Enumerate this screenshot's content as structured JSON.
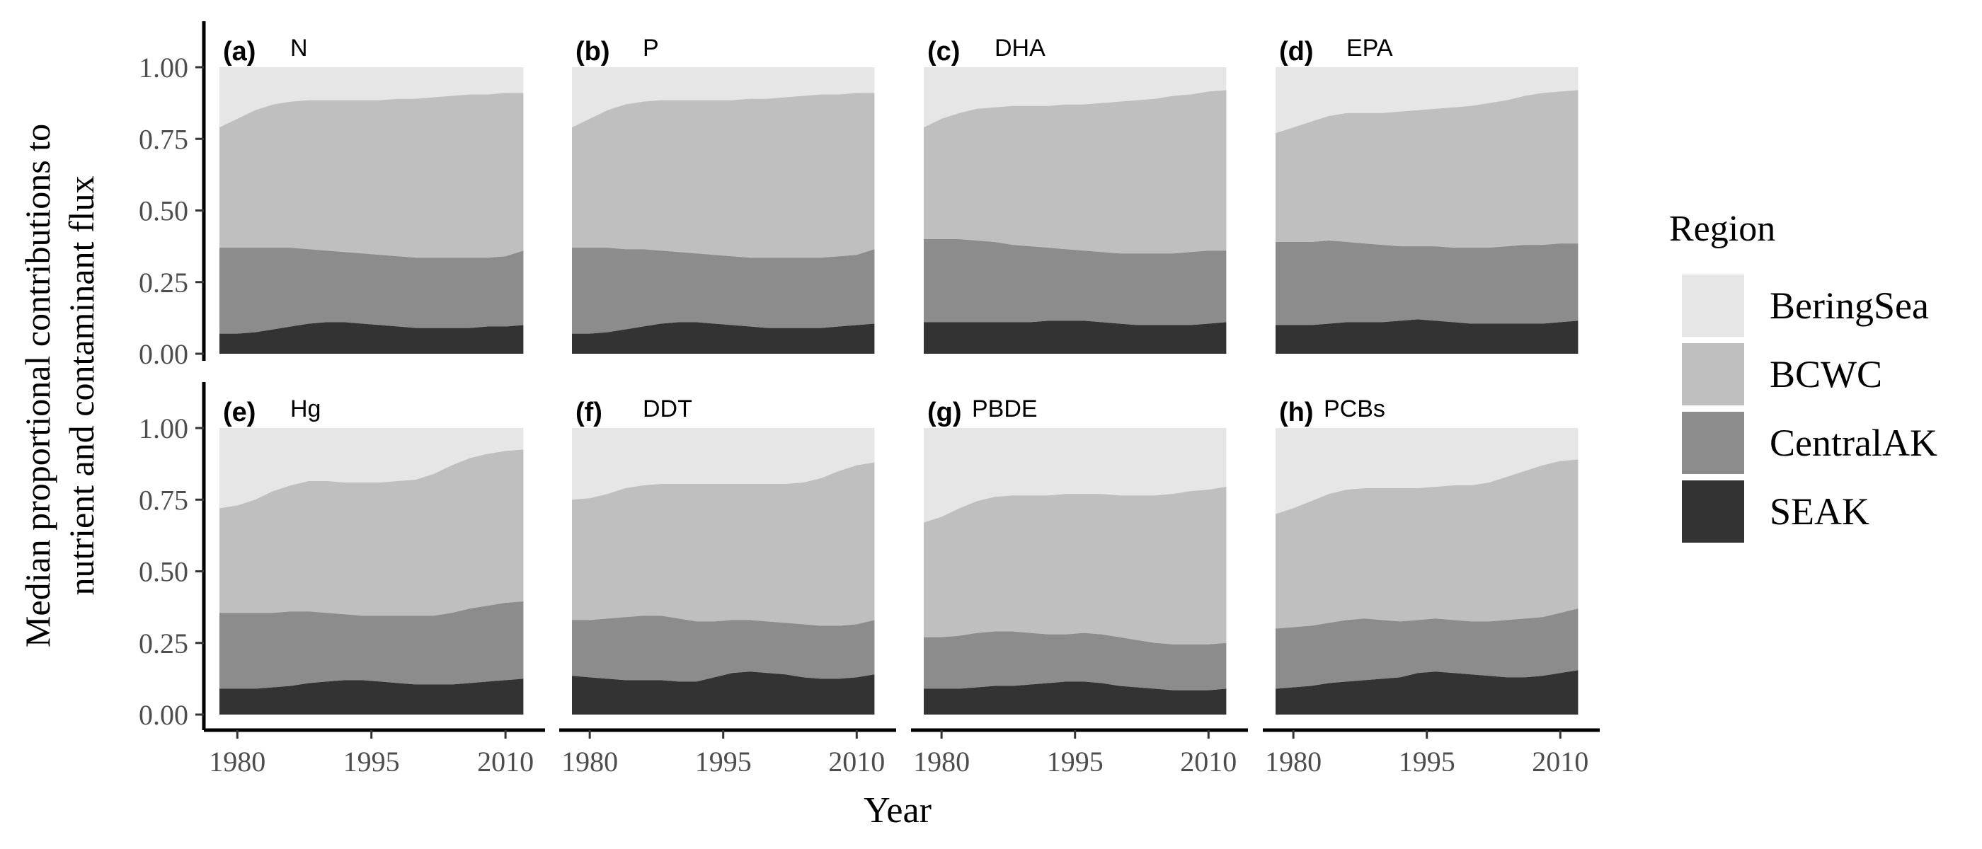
{
  "chart_data": {
    "type": "area",
    "stacked": true,
    "normalized": true,
    "xlabel": "Year",
    "ylabel_lines": [
      "Median proportional contributions to",
      "nutrient and contaminant flux"
    ],
    "x_ticks": [
      1980,
      1995,
      2010
    ],
    "y_ticks": [
      "0.00",
      "0.25",
      "0.50",
      "0.75",
      "1.00"
    ],
    "xlim": [
      1978,
      2013
    ],
    "ylim": [
      0,
      1
    ],
    "x": [
      1978,
      1980,
      1982,
      1984,
      1986,
      1988,
      1990,
      1992,
      1994,
      1996,
      1998,
      2000,
      2002,
      2004,
      2006,
      2008,
      2010,
      2012
    ],
    "legend": {
      "title": "Region",
      "position": "right",
      "entries": [
        "BeringSea",
        "BCWC",
        "CentralAK",
        "SEAK"
      ]
    },
    "colors": {
      "BeringSea": "#e6e6e6",
      "BCWC": "#bfbfbf",
      "CentralAK": "#8c8c8c",
      "SEAK": "#333333",
      "panel_bg": "#ffffff",
      "axis": "#000000",
      "tick_label": "#4d4d4d"
    },
    "panels": [
      {
        "tag": "(a)",
        "title": "N",
        "cumulative": {
          "SEAK": [
            0.07,
            0.07,
            0.075,
            0.085,
            0.095,
            0.105,
            0.11,
            0.11,
            0.105,
            0.1,
            0.095,
            0.09,
            0.09,
            0.09,
            0.09,
            0.095,
            0.095,
            0.1
          ],
          "CentralAK": [
            0.37,
            0.37,
            0.37,
            0.37,
            0.37,
            0.365,
            0.36,
            0.355,
            0.35,
            0.345,
            0.34,
            0.335,
            0.335,
            0.335,
            0.335,
            0.335,
            0.34,
            0.36
          ],
          "BCWC": [
            0.79,
            0.82,
            0.85,
            0.87,
            0.88,
            0.885,
            0.885,
            0.885,
            0.885,
            0.885,
            0.89,
            0.89,
            0.895,
            0.9,
            0.905,
            0.905,
            0.91,
            0.91
          ]
        }
      },
      {
        "tag": "(b)",
        "title": "P",
        "cumulative": {
          "SEAK": [
            0.07,
            0.07,
            0.075,
            0.085,
            0.095,
            0.105,
            0.11,
            0.11,
            0.105,
            0.1,
            0.095,
            0.09,
            0.09,
            0.09,
            0.09,
            0.095,
            0.1,
            0.105
          ],
          "CentralAK": [
            0.37,
            0.37,
            0.37,
            0.365,
            0.365,
            0.36,
            0.355,
            0.35,
            0.345,
            0.34,
            0.335,
            0.335,
            0.335,
            0.335,
            0.335,
            0.34,
            0.345,
            0.365
          ],
          "BCWC": [
            0.79,
            0.82,
            0.85,
            0.87,
            0.88,
            0.885,
            0.885,
            0.885,
            0.885,
            0.885,
            0.89,
            0.89,
            0.895,
            0.9,
            0.905,
            0.905,
            0.91,
            0.91
          ]
        }
      },
      {
        "tag": "(c)",
        "title": "DHA",
        "cumulative": {
          "SEAK": [
            0.11,
            0.11,
            0.11,
            0.11,
            0.11,
            0.11,
            0.11,
            0.115,
            0.115,
            0.115,
            0.11,
            0.105,
            0.1,
            0.1,
            0.1,
            0.1,
            0.105,
            0.11
          ],
          "CentralAK": [
            0.4,
            0.4,
            0.4,
            0.395,
            0.39,
            0.38,
            0.375,
            0.37,
            0.365,
            0.36,
            0.355,
            0.35,
            0.35,
            0.35,
            0.35,
            0.355,
            0.36,
            0.36
          ],
          "BCWC": [
            0.79,
            0.82,
            0.84,
            0.855,
            0.86,
            0.865,
            0.865,
            0.865,
            0.87,
            0.87,
            0.875,
            0.88,
            0.885,
            0.89,
            0.9,
            0.905,
            0.915,
            0.92
          ]
        }
      },
      {
        "tag": "(d)",
        "title": "EPA",
        "cumulative": {
          "SEAK": [
            0.1,
            0.1,
            0.1,
            0.105,
            0.11,
            0.11,
            0.11,
            0.115,
            0.12,
            0.115,
            0.11,
            0.105,
            0.105,
            0.105,
            0.105,
            0.105,
            0.11,
            0.115
          ],
          "CentralAK": [
            0.39,
            0.39,
            0.39,
            0.395,
            0.39,
            0.385,
            0.38,
            0.375,
            0.375,
            0.375,
            0.37,
            0.37,
            0.37,
            0.375,
            0.38,
            0.38,
            0.385,
            0.385
          ],
          "BCWC": [
            0.77,
            0.79,
            0.81,
            0.83,
            0.84,
            0.84,
            0.84,
            0.845,
            0.85,
            0.855,
            0.86,
            0.865,
            0.875,
            0.885,
            0.9,
            0.91,
            0.915,
            0.92
          ]
        }
      },
      {
        "tag": "(e)",
        "title": "Hg",
        "cumulative": {
          "SEAK": [
            0.09,
            0.09,
            0.09,
            0.095,
            0.1,
            0.11,
            0.115,
            0.12,
            0.12,
            0.115,
            0.11,
            0.105,
            0.105,
            0.105,
            0.11,
            0.115,
            0.12,
            0.125
          ],
          "CentralAK": [
            0.355,
            0.355,
            0.355,
            0.355,
            0.36,
            0.36,
            0.355,
            0.35,
            0.345,
            0.345,
            0.345,
            0.345,
            0.345,
            0.355,
            0.37,
            0.38,
            0.39,
            0.395
          ],
          "BCWC": [
            0.72,
            0.73,
            0.75,
            0.78,
            0.8,
            0.815,
            0.815,
            0.81,
            0.81,
            0.81,
            0.815,
            0.82,
            0.84,
            0.87,
            0.895,
            0.91,
            0.92,
            0.925
          ]
        }
      },
      {
        "tag": "(f)",
        "title": "DDT",
        "cumulative": {
          "SEAK": [
            0.135,
            0.13,
            0.125,
            0.12,
            0.12,
            0.12,
            0.115,
            0.115,
            0.13,
            0.145,
            0.15,
            0.145,
            0.14,
            0.13,
            0.125,
            0.125,
            0.13,
            0.14
          ],
          "CentralAK": [
            0.33,
            0.33,
            0.335,
            0.34,
            0.345,
            0.345,
            0.335,
            0.325,
            0.325,
            0.33,
            0.33,
            0.325,
            0.32,
            0.315,
            0.31,
            0.31,
            0.315,
            0.33
          ],
          "BCWC": [
            0.75,
            0.755,
            0.77,
            0.79,
            0.8,
            0.805,
            0.805,
            0.805,
            0.805,
            0.805,
            0.805,
            0.805,
            0.805,
            0.81,
            0.825,
            0.85,
            0.87,
            0.88
          ]
        }
      },
      {
        "tag": "(g)",
        "title": "PBDE",
        "cumulative": {
          "SEAK": [
            0.09,
            0.09,
            0.09,
            0.095,
            0.1,
            0.1,
            0.105,
            0.11,
            0.115,
            0.115,
            0.11,
            0.1,
            0.095,
            0.09,
            0.085,
            0.085,
            0.085,
            0.09
          ],
          "CentralAK": [
            0.27,
            0.27,
            0.275,
            0.285,
            0.29,
            0.29,
            0.285,
            0.28,
            0.28,
            0.285,
            0.28,
            0.27,
            0.26,
            0.25,
            0.245,
            0.245,
            0.245,
            0.25
          ],
          "BCWC": [
            0.67,
            0.69,
            0.72,
            0.745,
            0.76,
            0.765,
            0.765,
            0.765,
            0.77,
            0.77,
            0.77,
            0.765,
            0.765,
            0.765,
            0.77,
            0.78,
            0.785,
            0.795
          ]
        }
      },
      {
        "tag": "(h)",
        "title": "PCBs",
        "cumulative": {
          "SEAK": [
            0.09,
            0.095,
            0.1,
            0.11,
            0.115,
            0.12,
            0.125,
            0.13,
            0.145,
            0.15,
            0.145,
            0.14,
            0.135,
            0.13,
            0.13,
            0.135,
            0.145,
            0.155
          ],
          "CentralAK": [
            0.3,
            0.305,
            0.31,
            0.32,
            0.33,
            0.335,
            0.33,
            0.325,
            0.33,
            0.335,
            0.33,
            0.325,
            0.325,
            0.33,
            0.335,
            0.34,
            0.355,
            0.37
          ],
          "BCWC": [
            0.7,
            0.72,
            0.745,
            0.77,
            0.785,
            0.79,
            0.79,
            0.79,
            0.79,
            0.795,
            0.8,
            0.8,
            0.81,
            0.83,
            0.85,
            0.87,
            0.885,
            0.89
          ]
        }
      }
    ]
  }
}
